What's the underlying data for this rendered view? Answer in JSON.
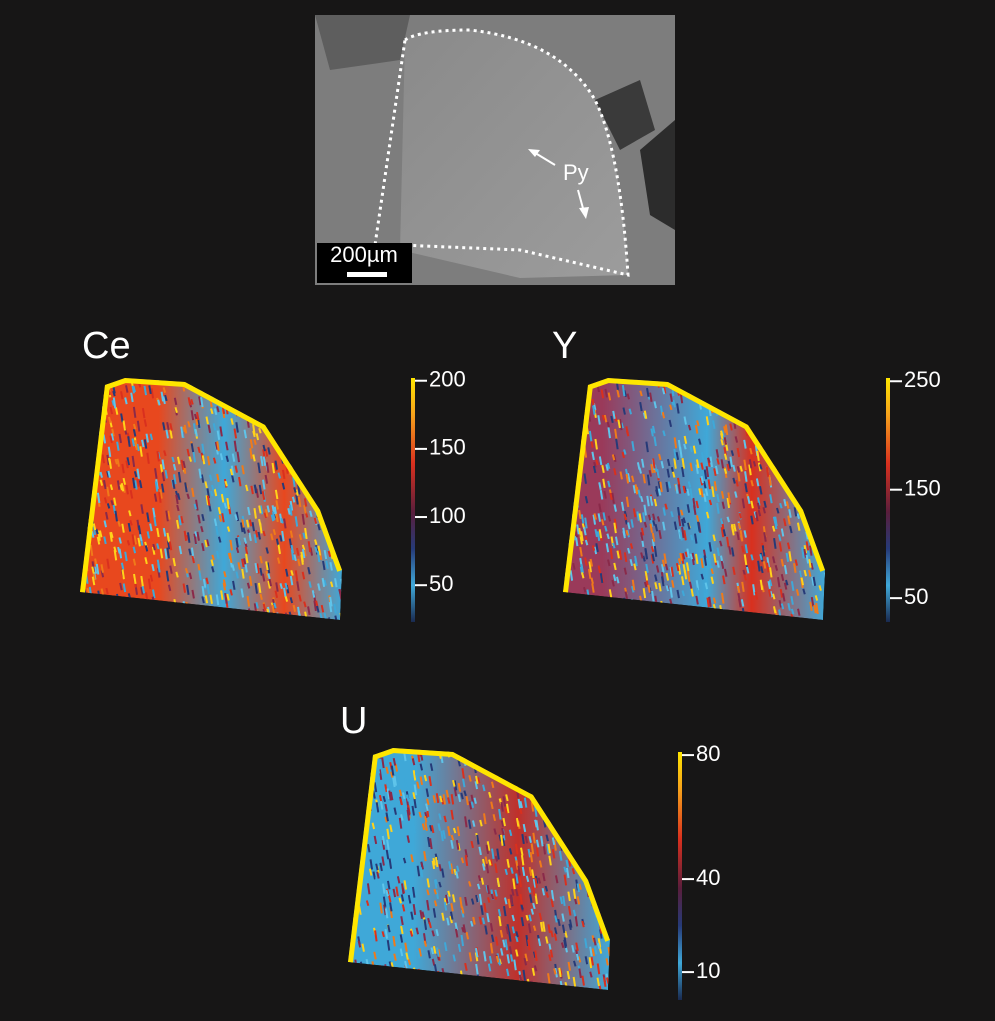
{
  "sem_image": {
    "label": "Py",
    "scale_bar": "200µm"
  },
  "maps": [
    {
      "element": "Ce",
      "colorbar": {
        "lim": [
          23,
          202
        ],
        "ticks": [
          200,
          150,
          100,
          50
        ]
      }
    },
    {
      "element": "Y",
      "colorbar": {
        "lim": [
          28,
          253
        ],
        "ticks": [
          250,
          150,
          50
        ]
      }
    },
    {
      "element": "U",
      "colorbar": {
        "lim": [
          1,
          81
        ],
        "ticks": [
          80,
          40,
          10
        ]
      }
    }
  ]
}
